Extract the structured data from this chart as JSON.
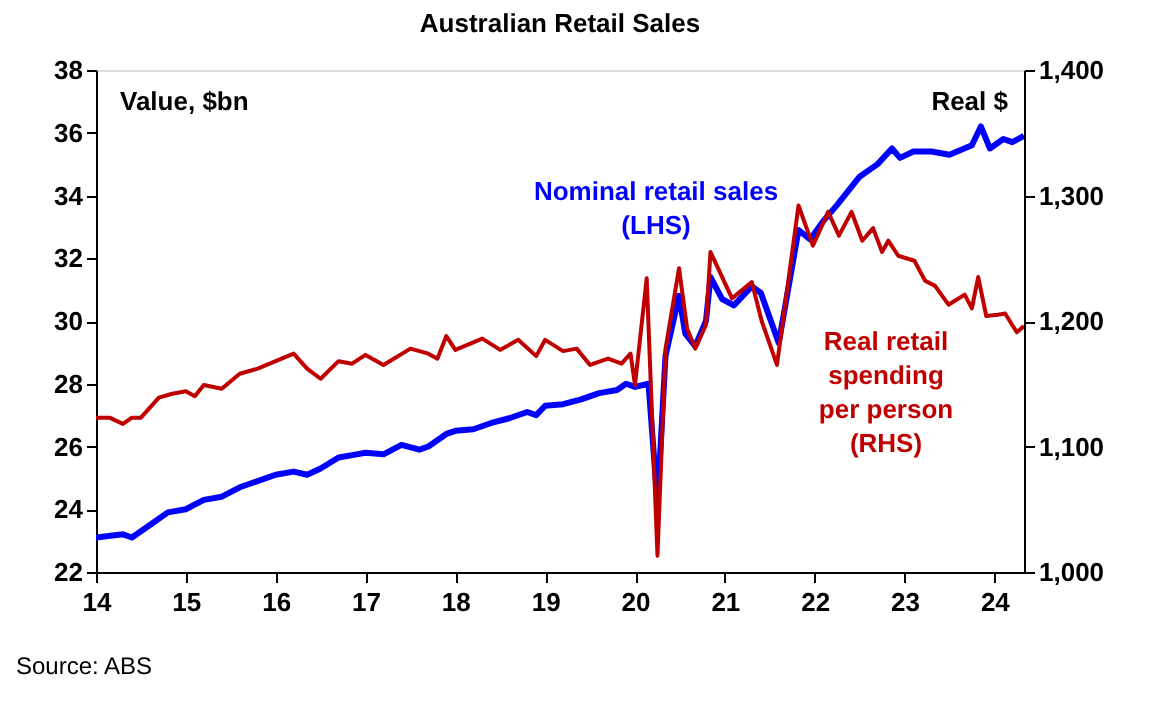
{
  "chart_data": {
    "type": "line",
    "title": "Australian Retail Sales",
    "ylabel": "Value, $bn",
    "y2label": "Real $",
    "annotations": [
      "Source: ABS"
    ],
    "xlim": [
      14,
      24.33
    ],
    "xticks": [
      14,
      15,
      16,
      17,
      18,
      19,
      20,
      21,
      22,
      23,
      24
    ],
    "ylim": [
      22,
      38
    ],
    "yticks": [
      22,
      24,
      26,
      28,
      30,
      32,
      34,
      36,
      38
    ],
    "y2lim": [
      1000,
      1400
    ],
    "y2ticks": [
      {
        "value": 1000,
        "label": "1,000"
      },
      {
        "value": 1100,
        "label": "1,100"
      },
      {
        "value": 1200,
        "label": "1,200"
      },
      {
        "value": 1300,
        "label": "1,300"
      },
      {
        "value": 1400,
        "label": "1,400"
      }
    ],
    "series": [
      {
        "name": "Real retail spending per person (RHS)",
        "color": "#c00000",
        "axis": "y2",
        "x": [
          14.0,
          14.15,
          14.3,
          14.4,
          14.5,
          14.7,
          14.85,
          15.0,
          15.1,
          15.2,
          15.4,
          15.6,
          15.8,
          16.0,
          16.2,
          16.35,
          16.5,
          16.7,
          16.85,
          17.0,
          17.2,
          17.5,
          17.7,
          17.8,
          17.9,
          18.0,
          18.3,
          18.5,
          18.7,
          18.9,
          19.0,
          19.2,
          19.35,
          19.5,
          19.7,
          19.85,
          19.95,
          20.0,
          20.13,
          20.25,
          20.34,
          20.49,
          20.58,
          20.67,
          20.79,
          20.84,
          21.08,
          21.3,
          21.41,
          21.58,
          21.82,
          21.98,
          22.15,
          22.27,
          22.41,
          22.53,
          22.65,
          22.75,
          22.82,
          22.93,
          23.11,
          23.23,
          23.34,
          23.49,
          23.67,
          23.75,
          23.82,
          23.91,
          24.04,
          24.12,
          24.25,
          24.33
        ],
        "values": [
          1123,
          1123,
          1118,
          1123,
          1123,
          1139,
          1142,
          1144,
          1140,
          1149,
          1146,
          1158,
          1162,
          1168,
          1174,
          1162,
          1154,
          1168,
          1166,
          1173,
          1165,
          1178,
          1174,
          1170,
          1188,
          1177,
          1186,
          1177,
          1185,
          1172,
          1185,
          1176,
          1178,
          1165,
          1170,
          1166,
          1174,
          1149,
          1234,
          1013,
          1178,
          1242,
          1194,
          1178,
          1197,
          1255,
          1218,
          1231,
          1200,
          1165,
          1292,
          1260,
          1287,
          1268,
          1287,
          1264,
          1274,
          1255,
          1264,
          1252,
          1248,
          1232,
          1228,
          1213,
          1221,
          1210,
          1235,
          1204,
          1205,
          1206,
          1191,
          1196
        ]
      },
      {
        "name": "Nominal retail sales (LHS)",
        "color": "#0000ff",
        "x": [
          14.0,
          14.3,
          14.4,
          14.6,
          14.8,
          15.0,
          15.2,
          15.4,
          15.6,
          15.9,
          16.0,
          16.2,
          16.35,
          16.5,
          16.7,
          16.9,
          17.0,
          17.2,
          17.4,
          17.6,
          17.7,
          17.9,
          18.0,
          18.2,
          18.4,
          18.6,
          18.8,
          18.9,
          19.0,
          19.2,
          19.4,
          19.6,
          19.8,
          19.9,
          20.0,
          20.15,
          20.25,
          20.34,
          20.49,
          20.56,
          20.67,
          20.79,
          20.84,
          20.97,
          21.1,
          21.3,
          21.4,
          21.6,
          21.82,
          21.95,
          22.1,
          22.25,
          22.5,
          22.7,
          22.86,
          22.95,
          23.1,
          23.3,
          23.5,
          23.75,
          23.85,
          23.95,
          24.1,
          24.2,
          24.33
        ],
        "values": [
          23.1,
          23.2,
          23.1,
          23.5,
          23.9,
          24.0,
          24.3,
          24.4,
          24.7,
          25.0,
          25.1,
          25.2,
          25.1,
          25.3,
          25.65,
          25.75,
          25.8,
          25.75,
          26.05,
          25.9,
          26.0,
          26.4,
          26.5,
          26.55,
          26.75,
          26.9,
          27.1,
          27.0,
          27.3,
          27.35,
          27.5,
          27.7,
          27.8,
          28.0,
          27.9,
          28.0,
          24.2,
          28.9,
          30.8,
          29.6,
          29.2,
          30.0,
          31.4,
          30.7,
          30.5,
          31.1,
          30.9,
          29.3,
          32.9,
          32.6,
          33.2,
          33.7,
          34.6,
          35.0,
          35.5,
          35.2,
          35.4,
          35.4,
          35.3,
          35.6,
          36.2,
          35.5,
          35.8,
          35.7,
          35.9
        ]
      }
    ]
  }
}
